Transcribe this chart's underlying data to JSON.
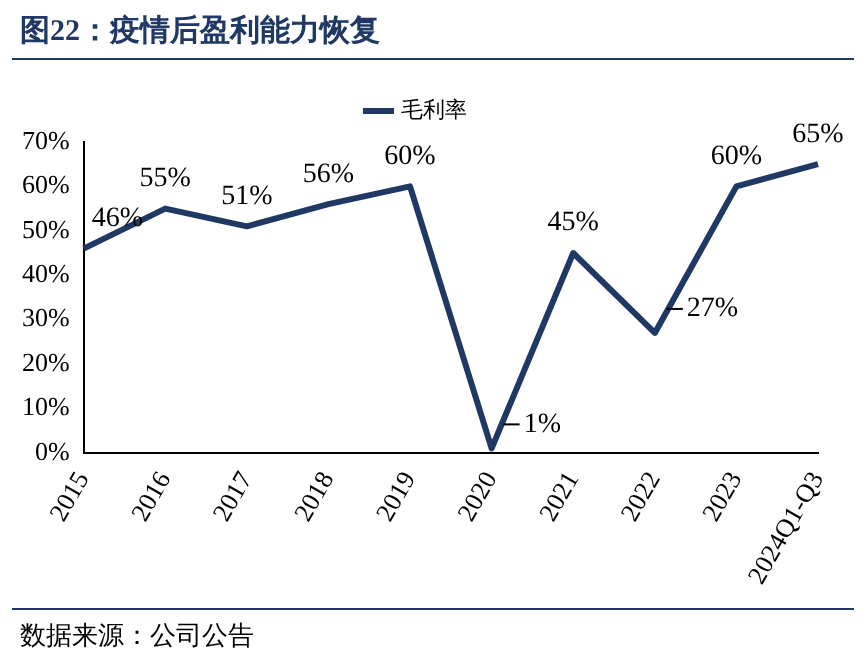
{
  "chart_data": {
    "type": "line",
    "title": "图22：疫情后盈利能力恢复",
    "annotations": [
      "数据来源：公司公告"
    ],
    "categories": [
      "2015",
      "2016",
      "2017",
      "2018",
      "2019",
      "2020",
      "2021",
      "2022",
      "2023",
      "2024Q1-Q3"
    ],
    "series": [
      {
        "name": "毛利率",
        "color": "#1f3864",
        "values": [
          46,
          55,
          51,
          56,
          60,
          1,
          45,
          27,
          60,
          65
        ],
        "value_labels": [
          "46%",
          "55%",
          "51%",
          "56%",
          "60%",
          "1%",
          "45%",
          "27%",
          "60%",
          "65%"
        ]
      }
    ],
    "ylim": [
      0,
      70
    ],
    "yticks": [
      {
        "value": 0,
        "label": "0%"
      },
      {
        "value": 10,
        "label": "10%"
      },
      {
        "value": 20,
        "label": "20%"
      },
      {
        "value": 30,
        "label": "30%"
      },
      {
        "value": 40,
        "label": "40%"
      },
      {
        "value": 50,
        "label": "50%"
      },
      {
        "value": 60,
        "label": "60%"
      },
      {
        "value": 70,
        "label": "70%"
      }
    ],
    "grid": false,
    "legend": "top",
    "marker": "none",
    "line_style": "solid"
  }
}
